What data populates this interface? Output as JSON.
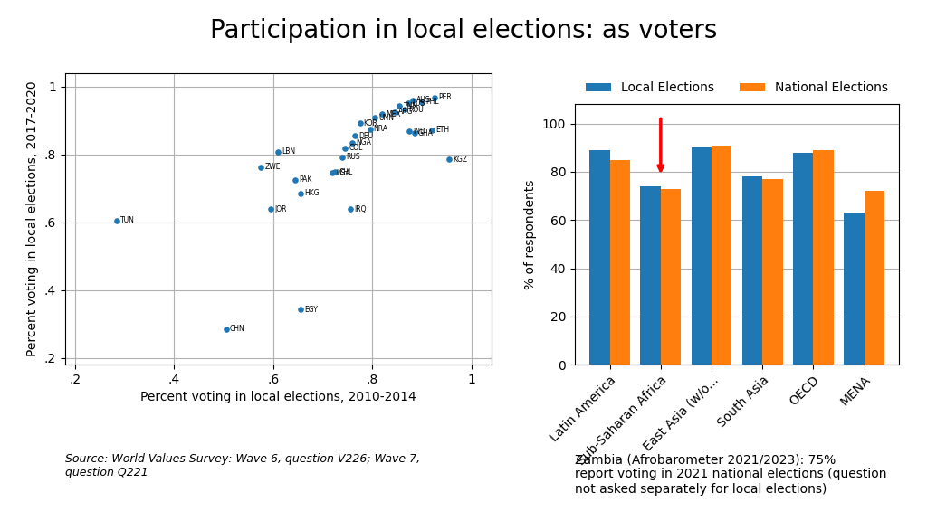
{
  "title": "Participation in local elections: as voters",
  "chart_data": [
    {
      "type": "scatter",
      "xlabel": "Percent voting in local elections, 2010-2014",
      "ylabel": "Percent voting in local elections, 2017-2020",
      "xlim": [
        0.18,
        1.04
      ],
      "ylim": [
        0.18,
        1.04
      ],
      "xticks": [
        {
          "value": 0.2,
          "label": ".2"
        },
        {
          "value": 0.4,
          "label": ".4"
        },
        {
          "value": 0.6,
          "label": ".6"
        },
        {
          "value": 0.8,
          "label": ".8"
        },
        {
          "value": 1.0,
          "label": "1"
        }
      ],
      "yticks": [
        {
          "value": 0.2,
          "label": ".2"
        },
        {
          "value": 0.4,
          "label": ".4"
        },
        {
          "value": 0.6,
          "label": ".6"
        },
        {
          "value": 0.8,
          "label": ".8"
        },
        {
          "value": 1.0,
          "label": "1"
        }
      ],
      "grid": true,
      "x": [
        0.285,
        0.505,
        0.595,
        0.61,
        0.575,
        0.645,
        0.655,
        0.655,
        0.72,
        0.725,
        0.74,
        0.745,
        0.76,
        0.765,
        0.755,
        0.775,
        0.795,
        0.805,
        0.82,
        0.845,
        0.855,
        0.865,
        0.875,
        0.885,
        0.9,
        0.92,
        0.925,
        0.955,
        0.882,
        0.872
      ],
      "values": [
        0.605,
        0.285,
        0.638,
        0.808,
        0.762,
        0.725,
        0.685,
        0.342,
        0.745,
        0.748,
        0.792,
        0.818,
        0.835,
        0.855,
        0.638,
        0.892,
        0.875,
        0.908,
        0.918,
        0.925,
        0.942,
        0.932,
        0.868,
        0.862,
        0.955,
        0.872,
        0.968,
        0.785,
        0.96,
        0.95
      ],
      "labels": [
        "TUN",
        "CHN",
        "JOR",
        "LBN",
        "ZWE",
        "PAK",
        "HKG",
        "EGY",
        "USA",
        "CHL",
        "RUS",
        "COL",
        "NGA",
        "DEU",
        "IRQ",
        "KOR",
        "NRA",
        "UNN",
        "MEX",
        "ARG",
        "TNN",
        "ROU",
        "IND",
        "GHA",
        "PHL",
        "ETH",
        "PER",
        "KGZ",
        "AUS",
        "LUS"
      ],
      "annotations": [
        "Source: World Values Survey: Wave 6, question V226; Wave 7,\nquestion Q221"
      ]
    },
    {
      "type": "bar",
      "ylabel": "% of respondents",
      "categories": [
        "Latin America",
        "Sub-Saharan Africa",
        "East Asia (w/o...",
        "South Asia",
        "OECD",
        "MENA"
      ],
      "series": [
        {
          "name": "Local Elections",
          "values": [
            89,
            74,
            90,
            78,
            88,
            63
          ]
        },
        {
          "name": "National Elections",
          "values": [
            85,
            73,
            91,
            77,
            89,
            72
          ]
        }
      ],
      "ylim": [
        0,
        108
      ],
      "yticks": [
        0,
        20,
        40,
        60,
        80,
        100
      ],
      "grid": true,
      "legend": "upper center",
      "arrow": {
        "category": "Sub-Saharan Africa",
        "from": 103,
        "to": 78,
        "color": "red"
      },
      "annotations": [
        "Zambia (Afrobarometer 2021/2023): 75%\nreport voting in 2021 national elections (question\nnot asked separately for local elections)"
      ]
    }
  ]
}
